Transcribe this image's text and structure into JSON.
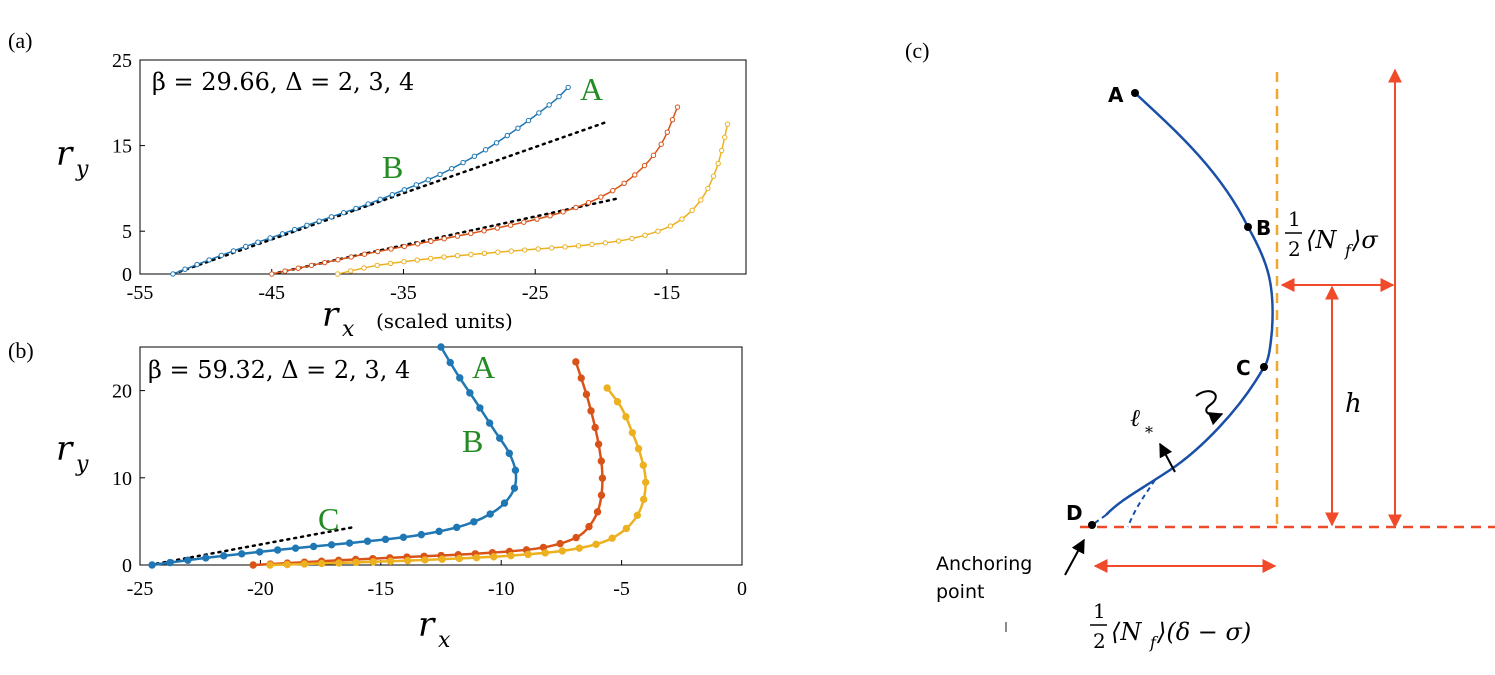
{
  "colors": {
    "series_blue": "#1f77b4",
    "series_orange": "#d95319",
    "series_yellow": "#edb120",
    "annotation_green": "#228b22",
    "dashed_red": "#f04a2a",
    "dashed_orange": "#f0a830",
    "curve_navy": "#1a4fa8"
  },
  "panel_a": {
    "label": "(a)",
    "annotation": "β = 29.66,  Δ = 2, 3, 4",
    "ylabel_main": "r",
    "ylabel_sub": "y",
    "xlabel_main": "r",
    "xlabel_sub": "x",
    "xlabel_units": "(scaled units)",
    "point_labels": [
      "A",
      "B"
    ],
    "chart_data": {
      "type": "line",
      "xlim": [
        -55,
        -9
      ],
      "ylim": [
        0,
        25
      ],
      "xticks": [
        -55,
        -45,
        -35,
        -25,
        -15
      ],
      "yticks": [
        0,
        5,
        15,
        25
      ],
      "series": [
        {
          "name": "Δ=2",
          "color": "#1f77b4",
          "x": [
            -52.5,
            -50,
            -47,
            -44,
            -41,
            -38,
            -35,
            -32,
            -29,
            -27,
            -25,
            -23.5,
            -22.5
          ],
          "y": [
            0,
            1.5,
            3.2,
            4.8,
            6.4,
            8.0,
            9.8,
            11.8,
            14.3,
            16.3,
            18.5,
            20.3,
            21.8
          ]
        },
        {
          "name": "Δ=3",
          "color": "#d95319",
          "x": [
            -45,
            -42,
            -38,
            -34,
            -30,
            -26,
            -23,
            -20,
            -17.5,
            -15.5,
            -14.2
          ],
          "y": [
            0,
            1.0,
            2.3,
            3.5,
            4.7,
            6.0,
            7.2,
            9.0,
            11.5,
            15.0,
            19.5
          ]
        },
        {
          "name": "Δ=4",
          "color": "#edb120",
          "x": [
            -40,
            -37,
            -33,
            -29,
            -25,
            -21,
            -17.5,
            -14.5,
            -12.5,
            -11.2,
            -10.4
          ],
          "y": [
            0,
            1.0,
            1.8,
            2.4,
            2.9,
            3.4,
            4.2,
            5.8,
            8.5,
            12.5,
            17.5
          ]
        }
      ],
      "tangent_lines": [
        {
          "x": [
            -52.5,
            -19.5
          ],
          "y": [
            0,
            17.8
          ]
        },
        {
          "x": [
            -45,
            -18.8
          ],
          "y": [
            0,
            8.8
          ]
        }
      ]
    }
  },
  "panel_b": {
    "label": "(b)",
    "annotation": "β = 59.32,  Δ = 2, 3, 4",
    "ylabel_main": "r",
    "ylabel_sub": "y",
    "xlabel_main": "r",
    "xlabel_sub": "x",
    "point_labels": [
      "A",
      "B",
      "C"
    ],
    "chart_data": {
      "type": "line",
      "xlim": [
        -25,
        0
      ],
      "ylim": [
        0,
        25
      ],
      "xticks": [
        -25,
        -20,
        -15,
        -10,
        -5,
        0
      ],
      "yticks": [
        0,
        10,
        20
      ],
      "series": [
        {
          "name": "Δ=2",
          "color": "#1f77b4",
          "x": [
            -24.5,
            -22,
            -19,
            -16,
            -13.5,
            -11.5,
            -10.2,
            -9.5,
            -9.4,
            -9.7,
            -10.3,
            -11.0,
            -11.8,
            -12.5
          ],
          "y": [
            0,
            0.9,
            1.8,
            2.6,
            3.4,
            4.6,
            6.3,
            8.5,
            10.7,
            13.0,
            15.5,
            18.5,
            21.8,
            25
          ]
        },
        {
          "name": "Δ=3",
          "color": "#d95319",
          "x": [
            -20.3,
            -17,
            -14,
            -11,
            -8.5,
            -7.0,
            -6.3,
            -5.9,
            -5.8,
            -6.0,
            -6.4,
            -6.9
          ],
          "y": [
            0,
            0.5,
            0.9,
            1.3,
            1.9,
            3.0,
            4.6,
            7.0,
            10.5,
            14.5,
            19.0,
            23.3
          ]
        },
        {
          "name": "Δ=4",
          "color": "#edb120",
          "x": [
            -19.6,
            -16,
            -13,
            -10,
            -7.5,
            -5.8,
            -4.8,
            -4.2,
            -4.0,
            -4.2,
            -4.6,
            -5.0,
            -5.6
          ],
          "y": [
            0,
            0.3,
            0.6,
            1.0,
            1.6,
            2.6,
            4.2,
            6.5,
            9.5,
            12.5,
            15.5,
            18.0,
            20.3
          ]
        }
      ],
      "tangent_lines": [
        {
          "x": [
            -24.6,
            -16.2
          ],
          "y": [
            0,
            4.3
          ]
        }
      ]
    }
  },
  "panel_c": {
    "label": "(c)",
    "point_labels": [
      "A",
      "B",
      "C",
      "D"
    ],
    "ell_label": "ℓ",
    "ell_sub": "*",
    "height_label": "h",
    "anchor_line1": "Anchoring",
    "anchor_line2": "point",
    "half_frac_num": "1",
    "half_frac_den": "2",
    "top_expr": "⟨N",
    "top_expr_sub": "f",
    "top_expr_tail": "⟩σ",
    "bottom_expr": "⟨N",
    "bottom_expr_sub": "f",
    "bottom_expr_tail": "⟩(δ − σ)"
  }
}
